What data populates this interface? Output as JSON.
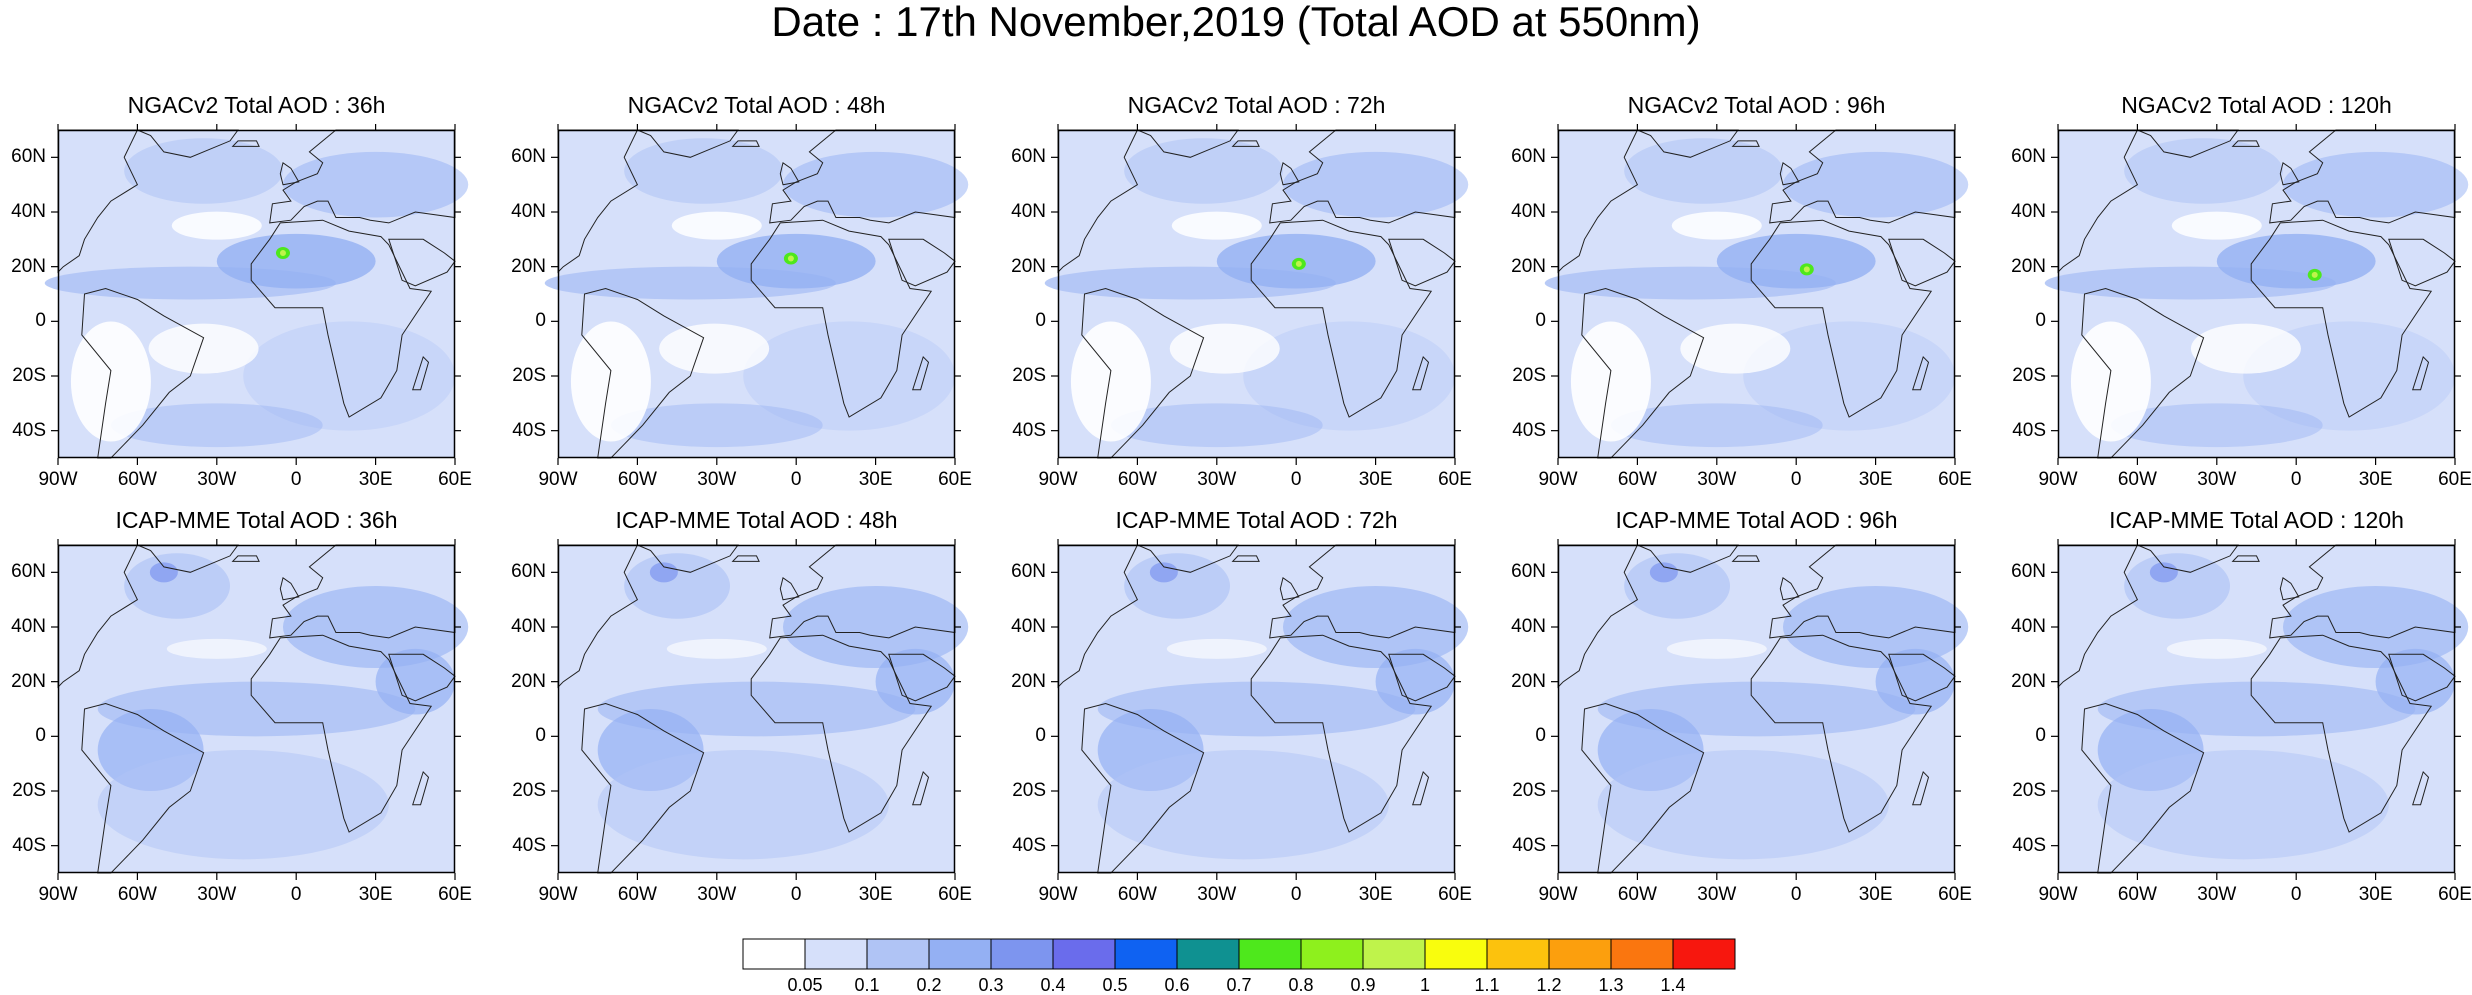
{
  "title": "Date : 17th November,2019 (Total AOD at 550nm)",
  "panels": [
    {
      "title": "NGACv2 Total AOD : 36h"
    },
    {
      "title": "NGACv2 Total AOD : 48h"
    },
    {
      "title": "NGACv2 Total AOD : 72h"
    },
    {
      "title": "NGACv2 Total AOD : 96h"
    },
    {
      "title": "NGACv2 Total AOD : 120h"
    },
    {
      "title": "ICAP-MME Total AOD : 36h"
    },
    {
      "title": "ICAP-MME Total AOD : 48h"
    },
    {
      "title": "ICAP-MME Total AOD : 72h"
    },
    {
      "title": "ICAP-MME Total AOD : 96h"
    },
    {
      "title": "ICAP-MME Total AOD : 120h"
    }
  ],
  "lat_labels": [
    "60N",
    "40N",
    "20N",
    "0",
    "20S",
    "40S"
  ],
  "lat_values": [
    60,
    40,
    20,
    0,
    -20,
    -40
  ],
  "lon_labels": [
    "90W",
    "60W",
    "30W",
    "0",
    "30E",
    "60E"
  ],
  "lon_values": [
    -90,
    -60,
    -30,
    0,
    30,
    60
  ],
  "map_extent": {
    "lon": [
      -90,
      60
    ],
    "lat": [
      -50,
      70
    ]
  },
  "colorbar": {
    "ticks": [
      "0.05",
      "0.1",
      "0.2",
      "0.3",
      "0.4",
      "0.5",
      "0.6",
      "0.7",
      "0.8",
      "0.9",
      "1",
      "1.1",
      "1.2",
      "1.3",
      "1.4"
    ],
    "colors": [
      "#ffffff",
      "#d6e0fa",
      "#b0c4f5",
      "#94b0f3",
      "#7d95ef",
      "#6a6cec",
      "#0f62f2",
      "#0f9191",
      "#4ee81c",
      "#8ef01d",
      "#bff34b",
      "#f9fd0d",
      "#fcc20d",
      "#fc9f0d",
      "#fa760f",
      "#f7170e"
    ]
  }
}
